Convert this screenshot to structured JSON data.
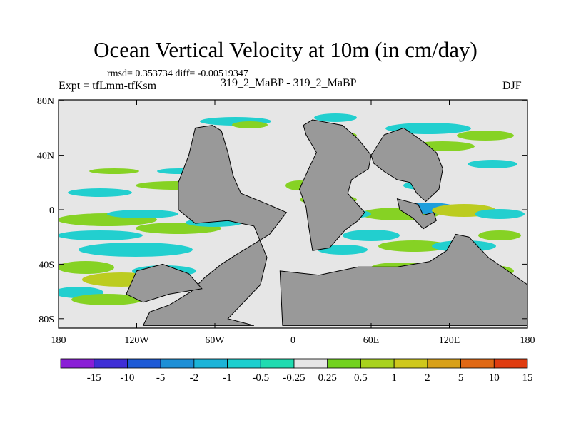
{
  "title": "Ocean Vertical Velocity at 10m (in cm/day)",
  "stats": "rmsd= 0.353734 diff= -0.00519347",
  "experiment": "Expt = tfLmm-tfKsm",
  "runs": "319_2_MaBP - 319_2_MaBP",
  "season": "DJF",
  "lat_labels": [
    "80N",
    "40N",
    "0",
    "40S",
    "80S"
  ],
  "lat_values": [
    80,
    40,
    0,
    -40,
    -80
  ],
  "lon_labels": [
    "180",
    "120W",
    "60W",
    "0",
    "60E",
    "120E",
    "180"
  ],
  "lon_values": [
    -180,
    -120,
    -60,
    0,
    60,
    120,
    180
  ],
  "colorbar": {
    "labels": [
      "-15",
      "-10",
      "-5",
      "-2",
      "-1",
      "-0.5",
      "-0.25",
      "0.25",
      "0.5",
      "1",
      "2",
      "5",
      "10",
      "15"
    ],
    "colors": [
      "#8a1ed6",
      "#3f2ed6",
      "#1d5ad6",
      "#1e8fd6",
      "#1cb4d8",
      "#1ccfcf",
      "#20dbb0",
      "#e6e6e6",
      "#72d21e",
      "#a8d21e",
      "#cfc81c",
      "#d8a018",
      "#e06814",
      "#e03c10"
    ]
  },
  "colors": {
    "land": "#999999",
    "neutral": "#e6e6e6",
    "positive": "#86d224",
    "positive_strong": "#bccc20",
    "negative": "#22cfcf",
    "negative_strong": "#1e9edc"
  }
}
